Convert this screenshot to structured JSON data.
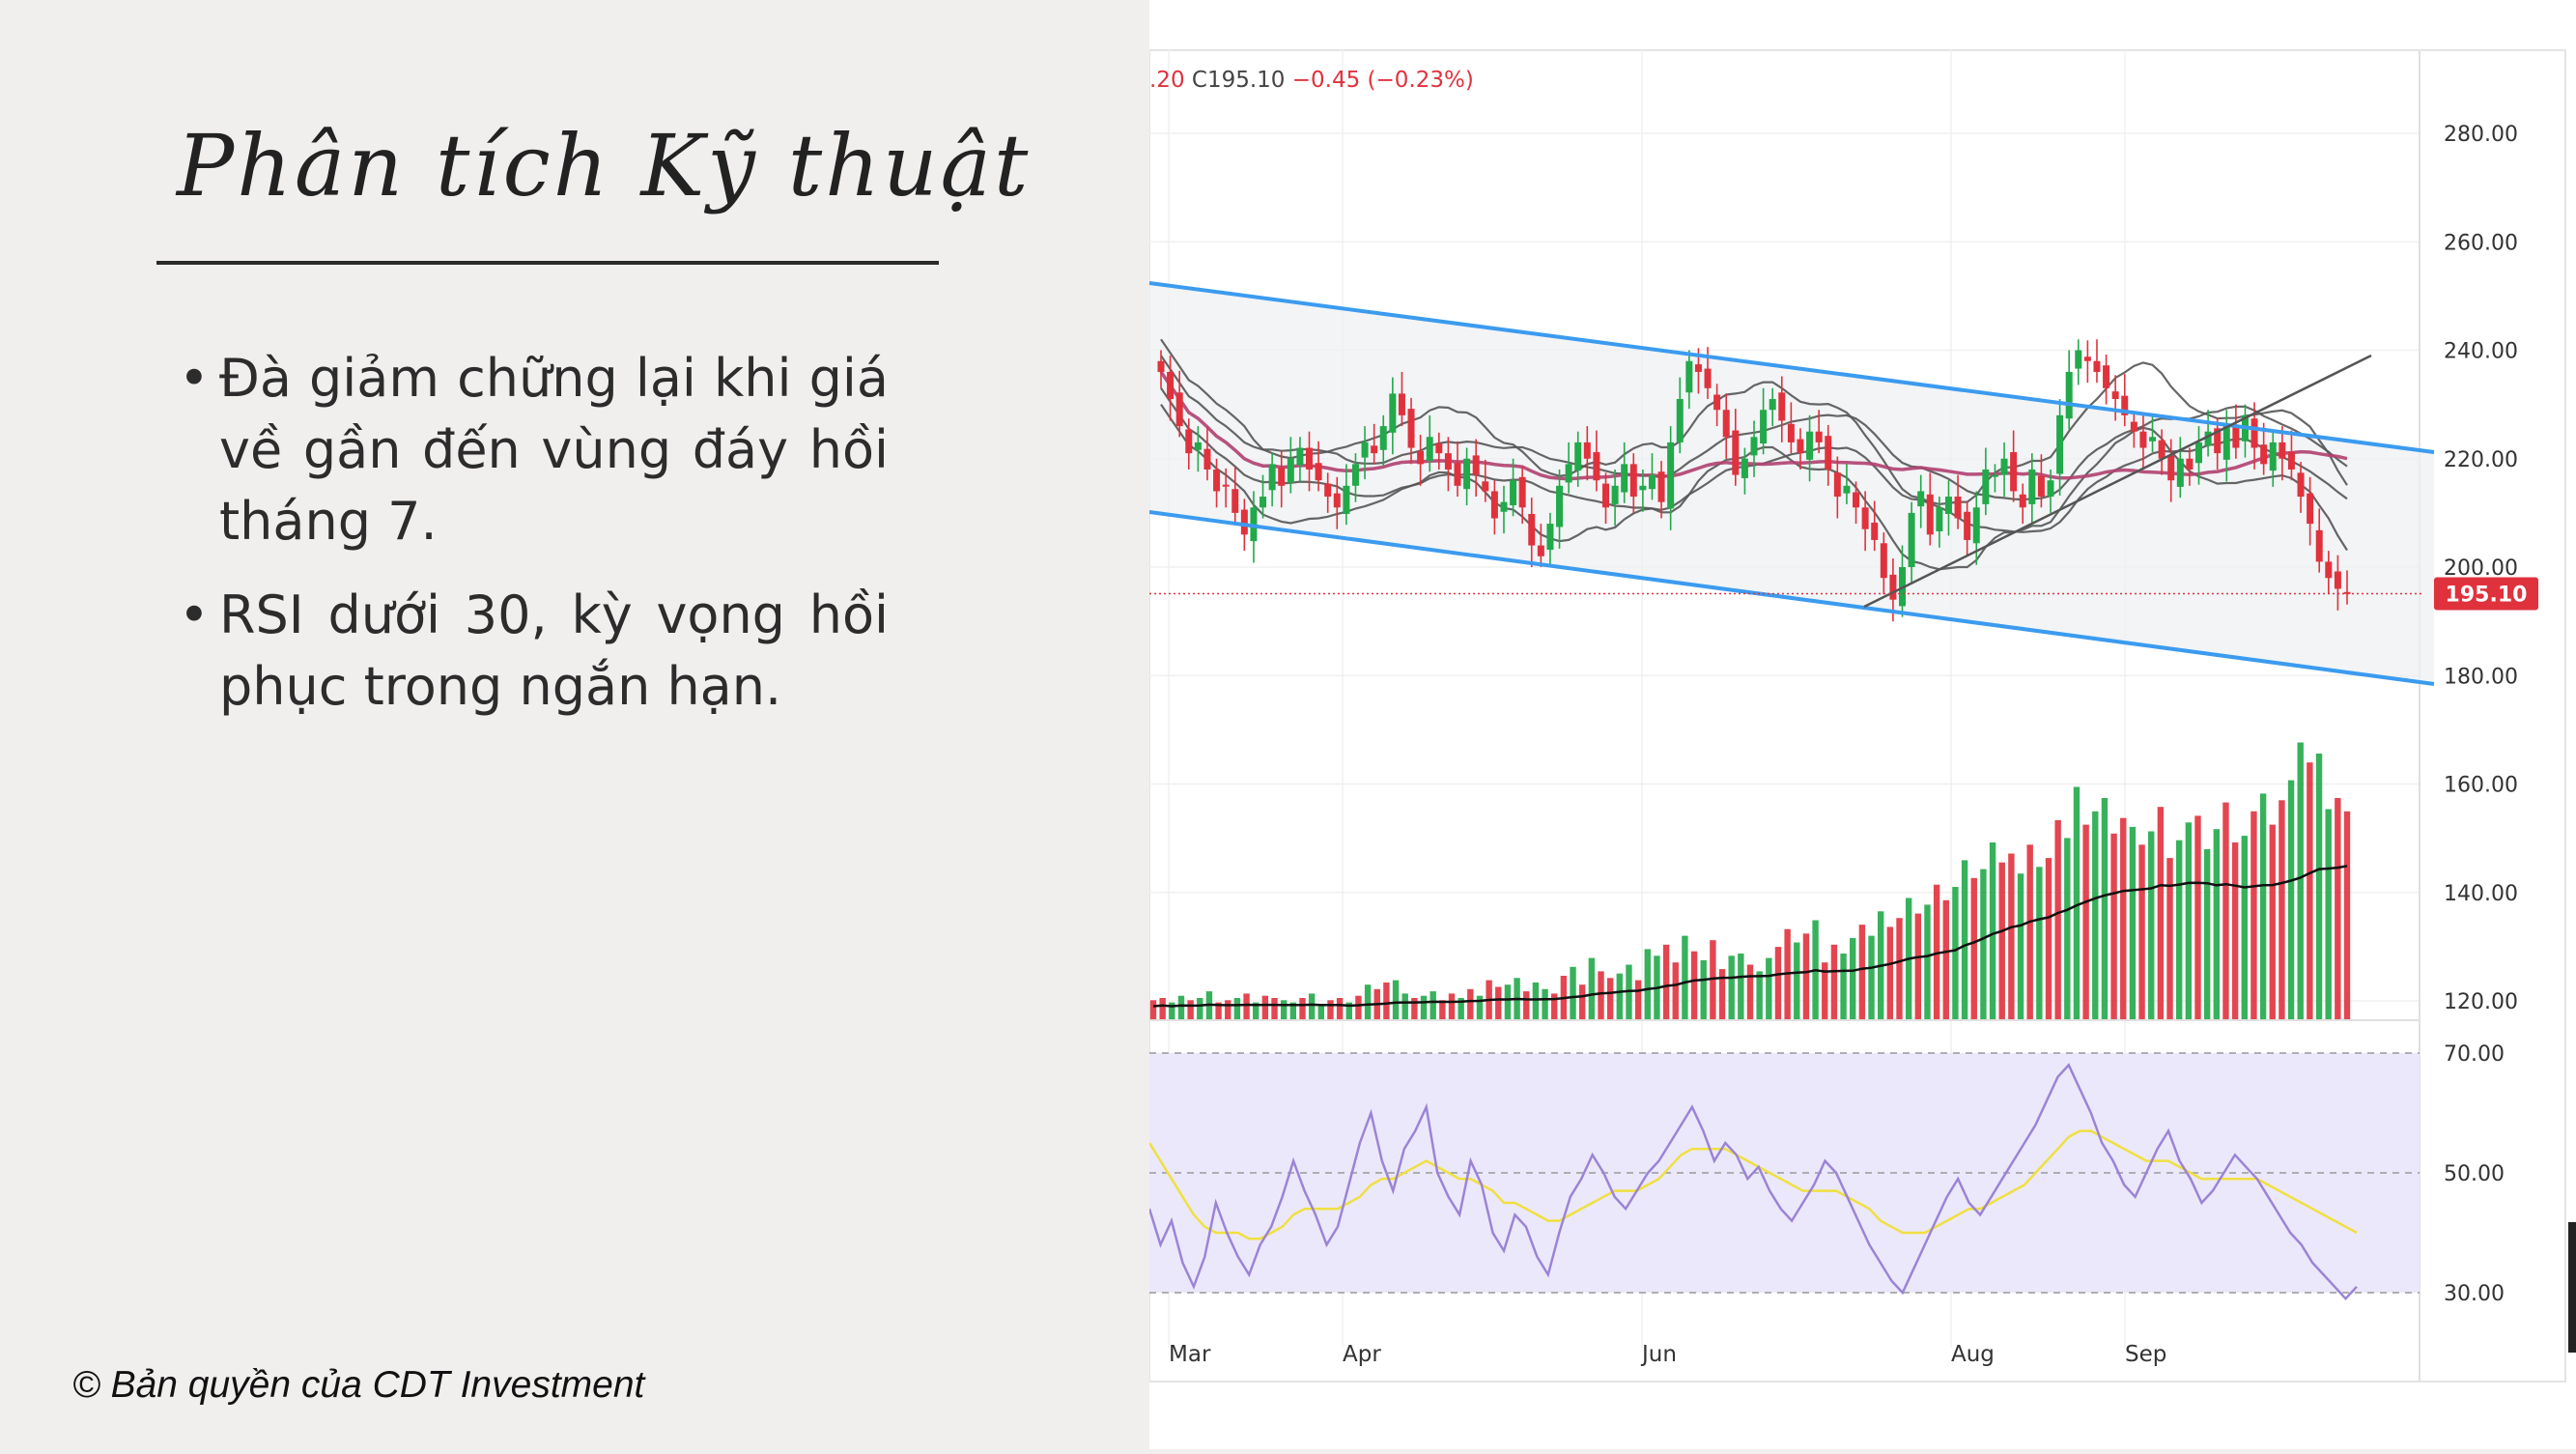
{
  "slide": {
    "title": "Phân tích Kỹ thuật",
    "bullets": [
      "Đà giảm chững lại khi giá về gần đến vùng đáy hồi tháng 7.",
      "RSI dưới 30, kỳ vọng hồi phục trong ngắn hạn."
    ],
    "bullet_glyph": "•",
    "copyright": "© Bản quyền của CDT Investment"
  },
  "chart_header": {
    "open_fragment": ".20",
    "close_label": "C",
    "close_value": "195.10",
    "change": "−0.45 (−0.23%)"
  },
  "colors": {
    "up": "#22a94a",
    "down": "#e0323d",
    "channel": "#3b9bef",
    "rsi": "#9b84d6",
    "rsi_ma": "#f0e040",
    "rsi_band": "#ece8fb",
    "ma_dark": "#555555",
    "ma_wine": "#b04070",
    "price_tag": "#e0323d"
  },
  "chart_data": {
    "type": "candlestick",
    "price_axis": {
      "ticks": [
        "280.00",
        "260.00",
        "240.00",
        "220.00",
        "200.00",
        "180.00",
        "160.00",
        "140.00",
        "120.00"
      ],
      "last_price_label": "195.10",
      "last_price": 195.1
    },
    "rsi_axis": {
      "ticks": [
        "70.00",
        "50.00",
        "30.00"
      ],
      "levels": [
        70,
        50,
        30
      ]
    },
    "time_axis": {
      "labels": [
        "Mar",
        "Apr",
        "Jun",
        "Aug",
        "Sep"
      ]
    },
    "price_series_approx": [
      236,
      231,
      226,
      221,
      223,
      218,
      214,
      215,
      210,
      206,
      211,
      213,
      219,
      215,
      220,
      222,
      218,
      216,
      213,
      211,
      215,
      219,
      223,
      221,
      226,
      232,
      228,
      222,
      219,
      224,
      221,
      218,
      215,
      220,
      217,
      214,
      209,
      212,
      216,
      211,
      204,
      202,
      208,
      215,
      219,
      223,
      220,
      216,
      211,
      215,
      219,
      213,
      215,
      217,
      212,
      223,
      231,
      238,
      236,
      233,
      229,
      224,
      217,
      220,
      224,
      229,
      231,
      227,
      223,
      221,
      225,
      223,
      218,
      213,
      215,
      211,
      207,
      205,
      198,
      194,
      200,
      210,
      214,
      206,
      211,
      213,
      209,
      205,
      211,
      218,
      217,
      220,
      214,
      211,
      218,
      213,
      216,
      228,
      236,
      240,
      238,
      236,
      233,
      231,
      228,
      225,
      222,
      224,
      220,
      216,
      220,
      218,
      223,
      225,
      221,
      226,
      222,
      228,
      222,
      219,
      223,
      220,
      218,
      213,
      208,
      201,
      198,
      196,
      195.1
    ],
    "volume_series_approx": [
      0.9,
      1.0,
      0.8,
      1.1,
      0.9,
      1.0,
      1.3,
      0.8,
      0.9,
      1.0,
      1.2,
      0.8,
      1.1,
      1.0,
      0.9,
      0.8,
      1.0,
      1.2,
      0.7,
      0.9,
      1.0,
      0.8,
      1.1,
      1.6,
      1.4,
      1.7,
      1.8,
      1.2,
      1.0,
      1.1,
      1.3,
      0.9,
      1.2,
      1.0,
      1.4,
      1.1,
      1.8,
      1.5,
      1.6,
      1.9,
      1.3,
      1.7,
      1.4,
      1.2,
      2.0,
      2.4,
      1.6,
      2.8,
      2.2,
      1.9,
      2.1,
      2.5,
      1.8,
      3.2,
      2.9,
      3.4,
      2.6,
      3.8,
      3.1,
      2.7,
      3.6,
      2.3,
      2.9,
      3.0,
      2.5,
      2.2,
      2.8,
      3.3,
      4.1,
      3.5,
      3.9,
      4.5,
      2.6,
      3.4,
      3.0,
      3.7,
      4.3,
      3.8,
      4.9,
      4.2,
      4.6,
      5.5,
      4.8,
      5.2,
      6.1,
      5.4,
      6.0,
      7.2,
      6.4,
      6.8,
      8.0,
      7.1,
      7.5,
      6.6,
      7.9,
      6.9,
      7.3,
      9.0,
      8.2,
      10.5,
      8.8,
      9.4,
      10.0,
      8.4,
      9.1,
      8.7,
      7.9,
      8.5,
      9.6,
      7.3,
      8.1,
      8.9,
      9.2,
      7.7,
      8.6,
      9.8,
      8.0,
      8.3,
      9.4,
      10.2,
      8.8,
      9.9,
      10.8,
      12.5,
      11.6,
      12.0,
      9.5,
      10.0,
      9.4
    ],
    "rsi_series_approx": [
      44,
      38,
      42,
      35,
      31,
      36,
      45,
      40,
      36,
      33,
      38,
      41,
      46,
      52,
      47,
      43,
      38,
      41,
      48,
      55,
      60,
      52,
      47,
      54,
      57,
      61,
      50,
      46,
      43,
      52,
      48,
      40,
      37,
      43,
      41,
      36,
      33,
      40,
      46,
      49,
      53,
      50,
      46,
      44,
      47,
      50,
      52,
      55,
      58,
      61,
      57,
      52,
      55,
      53,
      49,
      51,
      47,
      44,
      42,
      45,
      48,
      52,
      50,
      46,
      42,
      38,
      35,
      32,
      30,
      34,
      38,
      42,
      46,
      49,
      45,
      43,
      46,
      49,
      52,
      55,
      58,
      62,
      66,
      68,
      64,
      60,
      55,
      52,
      48,
      46,
      50,
      54,
      57,
      52,
      49,
      45,
      47,
      50,
      53,
      51,
      49,
      46,
      43,
      40,
      38,
      35,
      33,
      31,
      29,
      31
    ],
    "rsi_ma_series_approx": [
      55,
      52,
      49,
      46,
      43,
      41,
      40,
      40,
      40,
      39,
      39,
      40,
      41,
      43,
      44,
      44,
      44,
      44,
      45,
      46,
      48,
      49,
      49,
      50,
      51,
      52,
      51,
      50,
      49,
      49,
      48,
      47,
      45,
      45,
      44,
      43,
      42,
      42,
      43,
      44,
      45,
      46,
      47,
      47,
      47,
      48,
      49,
      51,
      53,
      54,
      54,
      54,
      54,
      53,
      52,
      51,
      50,
      49,
      48,
      47,
      47,
      47,
      47,
      46,
      45,
      44,
      42,
      41,
      40,
      40,
      40,
      41,
      42,
      43,
      44,
      44,
      45,
      46,
      47,
      48,
      50,
      52,
      54,
      56,
      57,
      57,
      56,
      55,
      54,
      53,
      52,
      52,
      52,
      51,
      50,
      49,
      49,
      49,
      49,
      49,
      49,
      48,
      47,
      46,
      45,
      44,
      43,
      42,
      41,
      40
    ]
  }
}
